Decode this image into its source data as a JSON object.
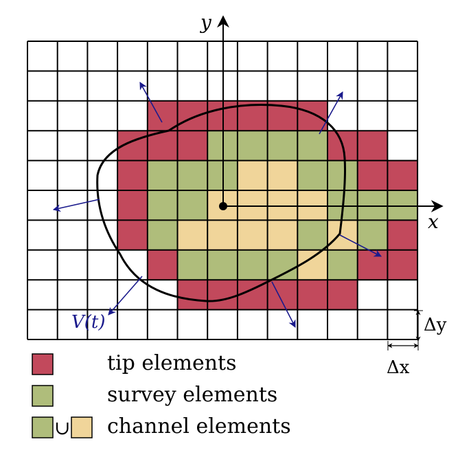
{
  "grid": {
    "cols": 13,
    "rows": 10,
    "line_color": "#000000",
    "cells": [
      "0000000000000",
      "0000000000000",
      "0000111111000",
      "0001112222110",
      "0001222332211",
      "0001223333222",
      "0001233332321",
      "0000122223211",
      "0000011111100",
      "0000000000000"
    ],
    "cell_legend": {
      "0": "empty",
      "1": "tip",
      "2": "survey",
      "3": "channel"
    }
  },
  "colors": {
    "tip": "#c2495c",
    "survey": "#afbd7b",
    "channel": "#f0d59a",
    "empty": "#ffffff",
    "arrow": "#1a1a8c",
    "axis": "#000000"
  },
  "axes": {
    "x_label": "x",
    "y_label": "y"
  },
  "velocity_label": "V(t)",
  "spacing": {
    "dx_label": "Δx",
    "dy_label": "Δy"
  },
  "legend": {
    "items": [
      {
        "swatches": [
          "tip"
        ],
        "label": "tip elements"
      },
      {
        "swatches": [
          "survey"
        ],
        "label": "survey elements"
      },
      {
        "swatches": [
          "survey",
          "channel"
        ],
        "union": "∪",
        "label": "channel elements"
      }
    ]
  }
}
